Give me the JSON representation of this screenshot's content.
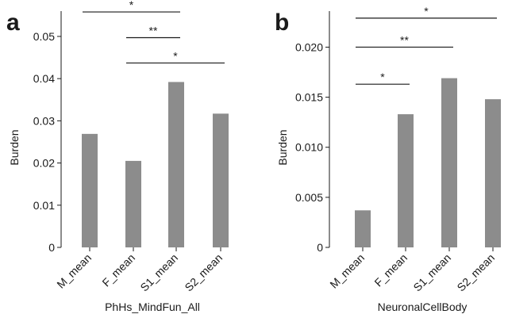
{
  "chart_data": [
    {
      "type": "bar",
      "panel_label": "a",
      "categories": [
        "M_mean",
        "F_mean",
        "S1_mean",
        "S2_mean"
      ],
      "values": [
        0.0269,
        0.0205,
        0.0392,
        0.0317
      ],
      "xlabel": "PhHs_MindFun_All",
      "ylabel": "Burden",
      "ylim": [
        0,
        0.056
      ],
      "yticks": [
        0,
        0.01,
        0.02,
        0.03,
        0.04,
        0.05
      ],
      "ytick_labels": [
        "0",
        "0.01",
        "0.02",
        "0.03",
        "0.04",
        "0.05"
      ],
      "bar_color": "#8c8c8c",
      "grid": false,
      "significance": [
        {
          "from": 0,
          "to": 2,
          "label": "*",
          "level": 0.0558
        },
        {
          "from": 1,
          "to": 2,
          "label": "**",
          "level": 0.0497
        },
        {
          "from": 1,
          "to": 3,
          "label": "*",
          "level": 0.0437
        }
      ]
    },
    {
      "type": "bar",
      "panel_label": "b",
      "categories": [
        "M_mean",
        "F_mean",
        "S1_mean",
        "S2_mean"
      ],
      "values": [
        0.0037,
        0.0133,
        0.0169,
        0.0148
      ],
      "xlabel": "NeuronalCellBody",
      "ylabel": "Burden",
      "ylim": [
        0,
        0.0236
      ],
      "yticks": [
        0,
        0.005,
        0.01,
        0.015,
        0.02
      ],
      "ytick_labels": [
        "0",
        "0.005",
        "0.010",
        "0.015",
        "0.020"
      ],
      "bar_color": "#8c8c8c",
      "grid": false,
      "significance": [
        {
          "from": 0,
          "to": 3,
          "label": "*",
          "level": 0.0229
        },
        {
          "from": 0,
          "to": 2,
          "label": "**",
          "level": 0.02
        },
        {
          "from": 0,
          "to": 1,
          "label": "*",
          "level": 0.0163
        }
      ]
    }
  ]
}
